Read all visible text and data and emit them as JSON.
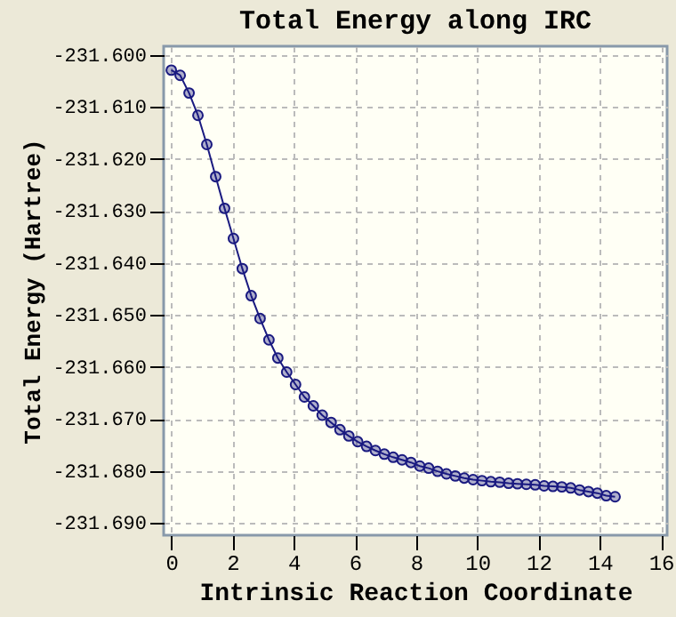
{
  "chart_data": {
    "type": "line",
    "title": "Total Energy along IRC",
    "xlabel": "Intrinsic Reaction Coordinate",
    "ylabel": "Total Energy (Hartree)",
    "x": [
      0,
      0.29,
      0.58,
      0.87,
      1.16,
      1.45,
      1.74,
      2.03,
      2.32,
      2.61,
      2.9,
      3.19,
      3.48,
      3.77,
      4.06,
      4.35,
      4.64,
      4.93,
      5.22,
      5.51,
      5.8,
      6.09,
      6.38,
      6.67,
      6.96,
      7.25,
      7.54,
      7.83,
      8.12,
      8.41,
      8.7,
      8.99,
      9.28,
      9.57,
      9.86,
      10.15,
      10.44,
      10.73,
      11.02,
      11.31,
      11.6,
      11.89,
      12.18,
      12.47,
      12.76,
      13.05,
      13.34,
      13.63,
      13.92,
      14.21,
      14.5
    ],
    "series": [
      {
        "color": "#1a1a80",
        "values": [
          -231.6029,
          -231.6039,
          -231.6073,
          -231.6116,
          -231.6172,
          -231.6234,
          -231.6295,
          -231.6353,
          -231.6411,
          -231.6463,
          -231.6507,
          -231.6548,
          -231.6583,
          -231.661,
          -231.6634,
          -231.6658,
          -231.6675,
          -231.6693,
          -231.6707,
          -231.6721,
          -231.6733,
          -231.6744,
          -231.6753,
          -231.6761,
          -231.6768,
          -231.6774,
          -231.6779,
          -231.6784,
          -231.6791,
          -231.6795,
          -231.6801,
          -231.6806,
          -231.681,
          -231.6814,
          -231.6817,
          -231.6819,
          -231.6821,
          -231.6822,
          -231.6824,
          -231.6825,
          -231.6826,
          -231.6827,
          -231.6829,
          -231.683,
          -231.6831,
          -231.6833,
          -231.6837,
          -231.684,
          -231.6843,
          -231.6848,
          -231.685
        ]
      }
    ],
    "xlim": [
      -0.25,
      16.2
    ],
    "xticks": [
      0,
      2,
      4,
      6,
      8,
      10,
      12,
      14,
      16
    ],
    "ylim": [
      -231.6924,
      -231.5983
    ],
    "yticks": [
      {
        "value": -231.6,
        "label": "-231.600"
      },
      {
        "value": -231.61,
        "label": "-231.610"
      },
      {
        "value": -231.62,
        "label": "-231.620"
      },
      {
        "value": -231.63,
        "label": "-231.630"
      },
      {
        "value": -231.64,
        "label": "-231.640"
      },
      {
        "value": -231.65,
        "label": "-231.650"
      },
      {
        "value": -231.66,
        "label": "-231.660"
      },
      {
        "value": -231.67,
        "label": "-231.670"
      },
      {
        "value": -231.68,
        "label": "-231.680"
      },
      {
        "value": -231.69,
        "label": "-231.690"
      }
    ],
    "grid": true,
    "marker": "circle",
    "line_style": "solid"
  }
}
